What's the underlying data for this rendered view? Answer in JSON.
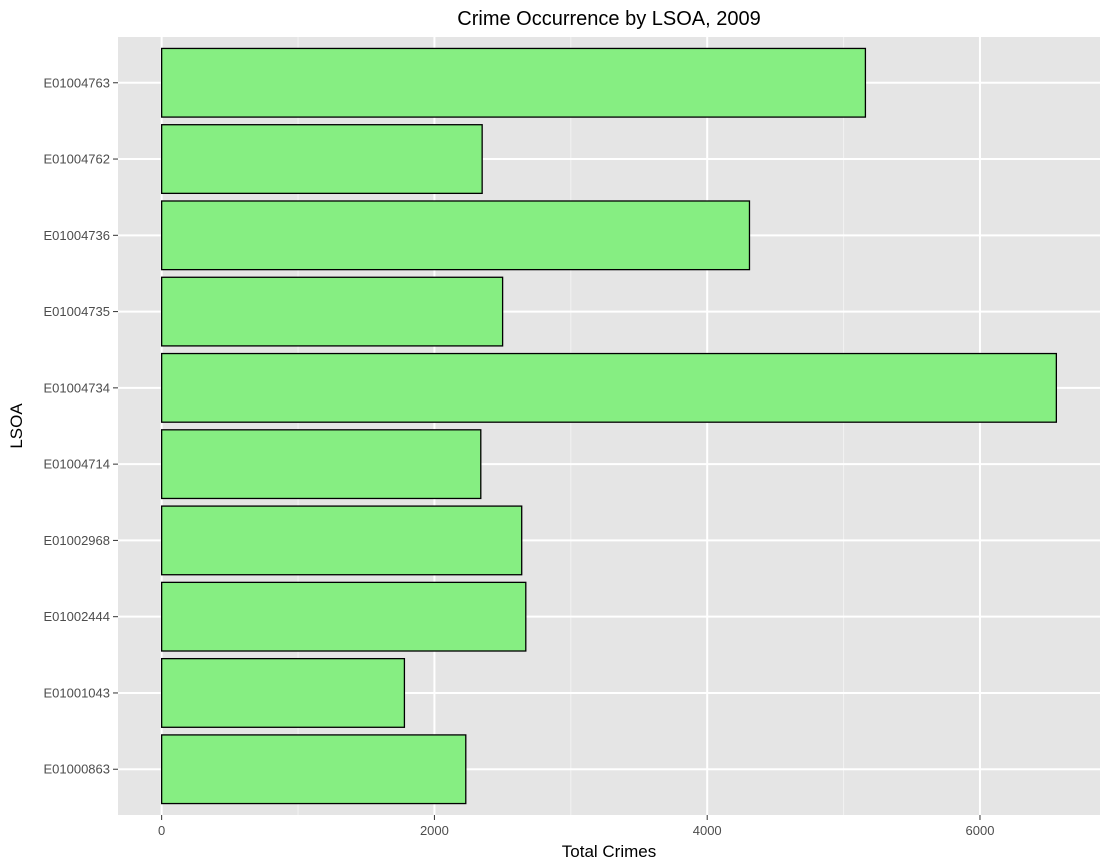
{
  "chart_data": {
    "type": "bar",
    "orientation": "horizontal",
    "title": "Crime Occurrence by LSOA, 2009",
    "xlabel": "Total Crimes",
    "ylabel": "LSOA",
    "categories": [
      "E01000863",
      "E01001043",
      "E01002444",
      "E01002968",
      "E01004714",
      "E01004734",
      "E01004735",
      "E01004736",
      "E01004762",
      "E01004763"
    ],
    "values": [
      2230,
      1780,
      2670,
      2640,
      2340,
      6560,
      2500,
      4310,
      2350,
      5160
    ],
    "xlim": [
      -320,
      6880
    ],
    "xticks": [
      0,
      2000,
      4000,
      6000
    ],
    "xtick_labels": [
      "0",
      "2000",
      "4000",
      "6000"
    ],
    "grid": true,
    "legend": "none",
    "colors": {
      "bar_fill": "#86EE82",
      "bar_stroke": "#000000",
      "panel_background": "#E5E5E5",
      "grid_major": "#FFFFFF",
      "grid_minor": "#F2F2F2",
      "tick_text": "#4D4D4D",
      "text": "#000000"
    }
  }
}
